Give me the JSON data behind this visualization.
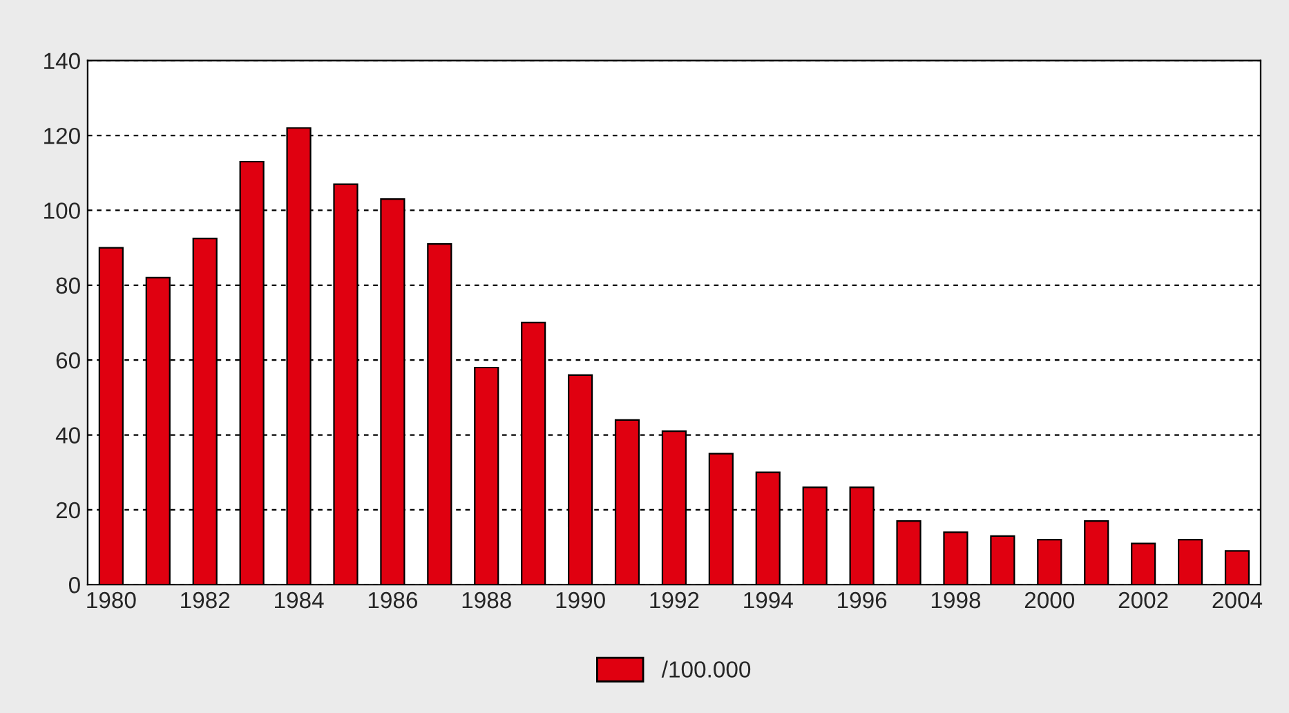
{
  "chart_data": {
    "type": "bar",
    "categories": [
      "1980",
      null,
      "1982",
      null,
      "1984",
      null,
      "1986",
      null,
      "1988",
      null,
      "1990",
      null,
      "1992",
      null,
      "1994",
      null,
      "1996",
      null,
      "1998",
      null,
      "2000",
      null,
      "2002",
      null,
      "2004"
    ],
    "series": [
      {
        "name": "/100.000",
        "color": "#e00010",
        "values": [
          90,
          82,
          92.5,
          113,
          122,
          107,
          103,
          91,
          58,
          70,
          56,
          44,
          41,
          35,
          30,
          26,
          26,
          17,
          14,
          13,
          12,
          17,
          11,
          12,
          9
        ]
      }
    ],
    "ylim": [
      0,
      140
    ],
    "yticks": [
      0,
      20,
      40,
      60,
      80,
      100,
      120,
      140
    ],
    "grid": "y",
    "legend": "bottom"
  }
}
